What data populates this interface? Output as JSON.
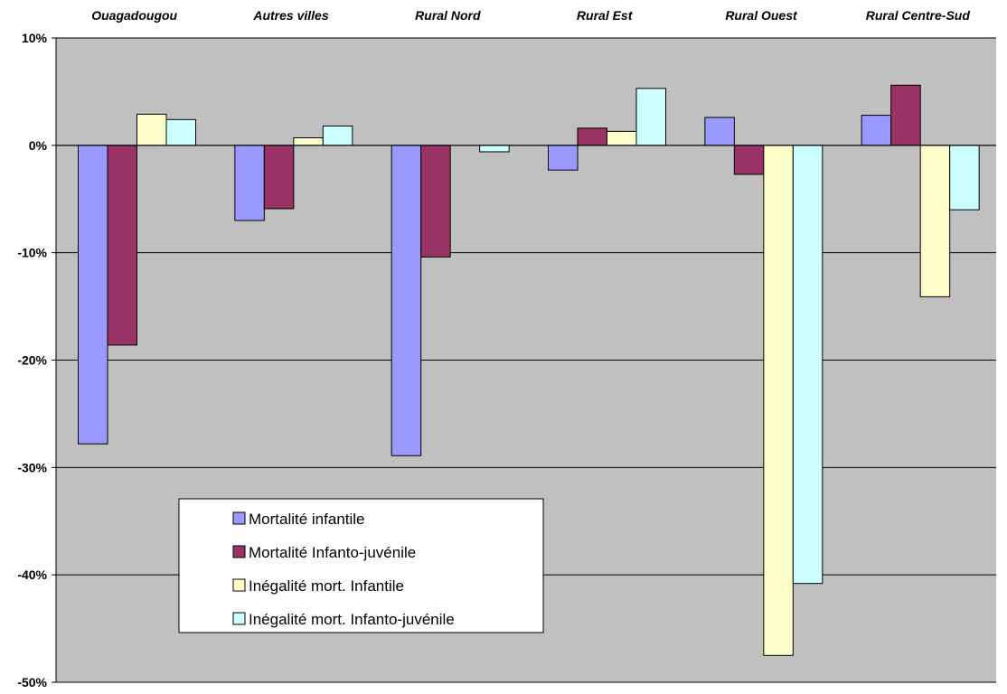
{
  "chart_data": {
    "type": "bar",
    "categories": [
      "Ouagadougou",
      "Autres villes",
      "Rural Nord",
      "Rural Est",
      "Rural Ouest",
      "Rural Centre-Sud"
    ],
    "series": [
      {
        "name": "Mortalité infantile",
        "color": "#9999ff",
        "values": [
          -27.8,
          -7.0,
          -28.9,
          -2.3,
          2.6,
          2.8
        ]
      },
      {
        "name": "Mortalité Infanto-juvénile",
        "color": "#993366",
        "values": [
          -18.6,
          -5.9,
          -10.4,
          1.6,
          -2.7,
          5.6
        ]
      },
      {
        "name": "Inégalité mort. Infantile",
        "color": "#ffffcc",
        "values": [
          2.9,
          0.7,
          0.0,
          1.3,
          -47.5,
          -14.1
        ]
      },
      {
        "name": "Inégalité mort. Infanto-juvénile",
        "color": "#ccffff",
        "values": [
          2.4,
          1.8,
          -0.6,
          5.3,
          -40.8,
          -6.0
        ]
      }
    ],
    "yticks": [
      10,
      0,
      -10,
      -20,
      -30,
      -40,
      -50
    ],
    "ytick_labels": [
      "10%",
      "0%",
      "-10%",
      "-20%",
      "-30%",
      "-40%",
      "-50%"
    ],
    "ylim": [
      -50,
      10
    ],
    "grid": true,
    "plot_background": "#c0c0c0",
    "category_axis_position": "top",
    "legend_position": "lower-left-inside",
    "title": "",
    "xlabel": "",
    "ylabel": ""
  }
}
